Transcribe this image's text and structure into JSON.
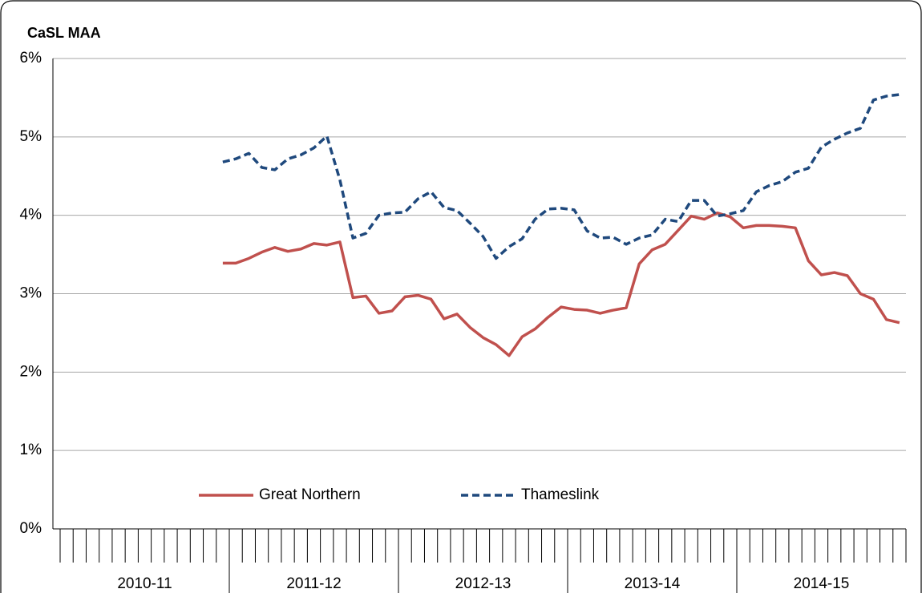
{
  "chart_data": {
    "type": "line",
    "title": "CaSL MAA",
    "categories": [
      null,
      null,
      null,
      null,
      null,
      null,
      null,
      null,
      null,
      null,
      null,
      null,
      null,
      null,
      null,
      null,
      null,
      null,
      null,
      null,
      null,
      null,
      null,
      null,
      null,
      null,
      null,
      null,
      null,
      null,
      null,
      null,
      null,
      null,
      null,
      null,
      null,
      null,
      null,
      null,
      null,
      null,
      null,
      null,
      null,
      null,
      null,
      null,
      null,
      null,
      null,
      null,
      null,
      null,
      null,
      null,
      null,
      null,
      null,
      null,
      null,
      null,
      null,
      null,
      null
    ],
    "x_groups": [
      "2010-11",
      "2011-12",
      "2012-13",
      "2013-14",
      "2014-15"
    ],
    "series": [
      {
        "name": "Great Northern",
        "color": "#c0504d",
        "style": "solid",
        "values": [
          null,
          null,
          null,
          null,
          null,
          null,
          null,
          null,
          null,
          null,
          null,
          null,
          3.39,
          3.39,
          3.45,
          3.53,
          3.59,
          3.54,
          3.57,
          3.64,
          3.62,
          3.66,
          2.95,
          2.97,
          2.75,
          2.78,
          2.96,
          2.98,
          2.93,
          2.68,
          2.74,
          2.57,
          2.44,
          2.35,
          2.21,
          2.45,
          2.55,
          2.7,
          2.83,
          2.8,
          2.79,
          2.75,
          2.79,
          2.82,
          3.38,
          3.56,
          3.63,
          3.81,
          3.99,
          3.95,
          4.03,
          3.98,
          3.84,
          3.87,
          3.87,
          3.86,
          3.84,
          3.42,
          3.24,
          3.27,
          3.23,
          3.0,
          2.93,
          2.67,
          2.63
        ]
      },
      {
        "name": "Thameslink",
        "color": "#1f497d",
        "style": "dashed",
        "values": [
          null,
          null,
          null,
          null,
          null,
          null,
          null,
          null,
          null,
          null,
          null,
          null,
          4.68,
          4.72,
          4.79,
          4.61,
          4.58,
          4.72,
          4.77,
          4.86,
          5.01,
          4.45,
          3.71,
          3.77,
          4.0,
          4.03,
          4.04,
          4.21,
          4.3,
          4.1,
          4.06,
          3.9,
          3.73,
          3.45,
          3.6,
          3.7,
          3.95,
          4.08,
          4.09,
          4.07,
          3.8,
          3.71,
          3.72,
          3.63,
          3.71,
          3.75,
          3.95,
          3.92,
          4.19,
          4.19,
          3.99,
          4.02,
          4.06,
          4.3,
          4.38,
          4.43,
          4.55,
          4.6,
          4.87,
          4.97,
          5.05,
          5.11,
          5.47,
          5.52,
          5.54
        ]
      }
    ],
    "ylim": [
      0,
      6
    ],
    "yticks": [
      {
        "value": 0,
        "label": "0%"
      },
      {
        "value": 1,
        "label": "1%"
      },
      {
        "value": 2,
        "label": "2%"
      },
      {
        "value": 3,
        "label": "3%"
      },
      {
        "value": 4,
        "label": "4%"
      },
      {
        "value": 5,
        "label": "5%"
      },
      {
        "value": 6,
        "label": "6%"
      }
    ],
    "grid": true,
    "legend": "bottom"
  }
}
